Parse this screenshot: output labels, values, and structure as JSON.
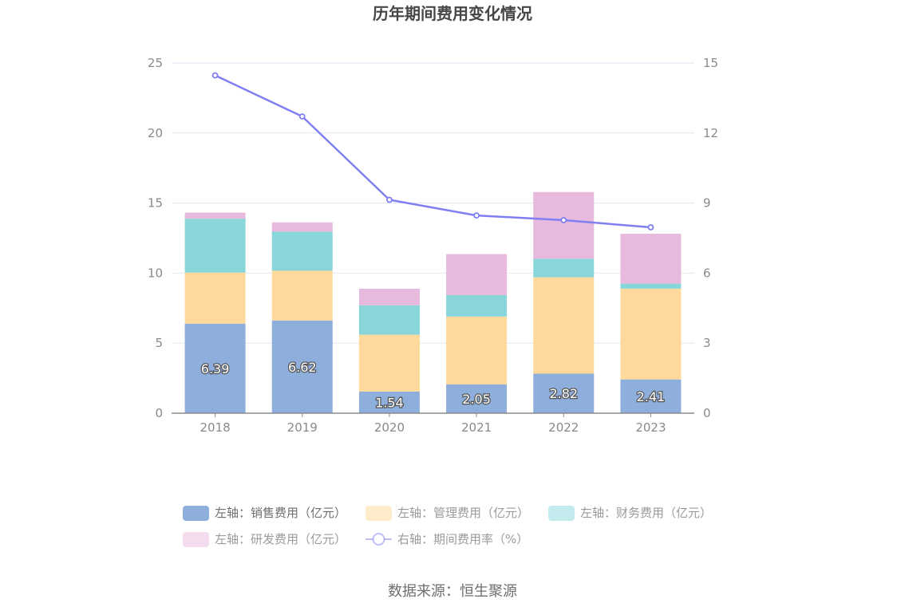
{
  "chart_data": {
    "type": "bar",
    "title": "历年期间费用变化情况",
    "categories": [
      "2018",
      "2019",
      "2020",
      "2021",
      "2022",
      "2023"
    ],
    "stacked": true,
    "left_axis": {
      "ylim": [
        0,
        25
      ],
      "ticks": [
        "0",
        "5",
        "10",
        "15",
        "20",
        "25"
      ]
    },
    "right_axis": {
      "ylim": [
        0,
        15
      ],
      "ticks": [
        "0",
        "3",
        "6",
        "9",
        "12",
        "15"
      ]
    },
    "grid": true,
    "legend_position": "bottom",
    "series": [
      {
        "name": "左轴：销售费用（亿元）",
        "type": "bar",
        "axis": "left",
        "color": "#8eaedc",
        "values": [
          6.39,
          6.62,
          1.54,
          2.05,
          2.82,
          2.41
        ],
        "labels": [
          "6.39",
          "6.62",
          "1.54",
          "2.05",
          "2.82",
          "2.41"
        ]
      },
      {
        "name": "左轴：管理费用（亿元）",
        "type": "bar",
        "axis": "left",
        "color": "#fed99b",
        "values": [
          3.65,
          3.55,
          4.06,
          4.85,
          6.88,
          6.48
        ]
      },
      {
        "name": "左轴：财务费用（亿元）",
        "type": "bar",
        "axis": "left",
        "color": "#88d6d9",
        "values": [
          3.84,
          2.79,
          2.1,
          1.53,
          1.33,
          0.36
        ]
      },
      {
        "name": "左轴：研发费用（亿元）",
        "type": "bar",
        "axis": "left",
        "color": "#e7b9dc",
        "values": [
          0.44,
          0.66,
          1.19,
          2.93,
          4.76,
          3.56
        ]
      },
      {
        "name": "右轴：期间费用率（%）",
        "type": "line",
        "axis": "right",
        "color": "#7f7ff2",
        "values": [
          14.47,
          12.71,
          9.14,
          8.47,
          8.27,
          7.96
        ]
      }
    ]
  },
  "source": "数据来源：恒生聚源"
}
